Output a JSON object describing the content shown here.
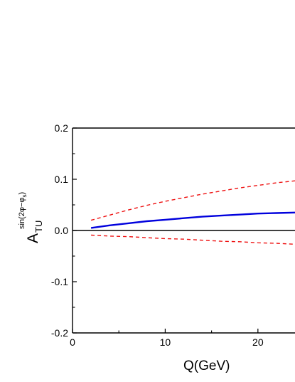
{
  "chart_data": {
    "type": "line",
    "xlabel": "Q(GeV)",
    "ylabel": {
      "main": "A",
      "subscript": "TU",
      "superscript": "sin(2φ−φ",
      "superscript_sub": "s",
      "superscript_close": ")"
    },
    "xlim": [
      0,
      24
    ],
    "ylim": [
      -0.2,
      0.2
    ],
    "x_ticks": [
      {
        "value": 0,
        "label": "0"
      },
      {
        "value": 10,
        "label": "10"
      },
      {
        "value": 20,
        "label": "20"
      }
    ],
    "y_ticks": [
      {
        "value": 0.2,
        "label": "0.2"
      },
      {
        "value": 0.1,
        "label": "0.1"
      },
      {
        "value": 0.0,
        "label": "0.0"
      },
      {
        "value": -0.1,
        "label": "-0.1"
      },
      {
        "value": -0.2,
        "label": "-0.2"
      }
    ],
    "zero_line": true,
    "grid": false,
    "series": [
      {
        "style": "solid",
        "color": "#0000dd",
        "x": [
          2,
          4,
          6,
          8,
          10,
          12,
          14,
          16,
          18,
          20,
          22,
          24
        ],
        "y": [
          0.005,
          0.01,
          0.014,
          0.018,
          0.021,
          0.024,
          0.027,
          0.029,
          0.031,
          0.033,
          0.034,
          0.035
        ]
      },
      {
        "style": "dashed",
        "color": "#ee1111",
        "x": [
          2,
          4,
          6,
          8,
          10,
          12,
          14,
          16,
          18,
          20,
          22,
          24
        ],
        "y": [
          0.02,
          0.03,
          0.04,
          0.049,
          0.057,
          0.064,
          0.071,
          0.077,
          0.083,
          0.088,
          0.093,
          0.097
        ]
      },
      {
        "style": "dashed",
        "color": "#ee1111",
        "x": [
          2,
          4,
          6,
          8,
          10,
          12,
          14,
          16,
          18,
          20,
          22,
          24
        ],
        "y": [
          -0.009,
          -0.011,
          -0.012,
          -0.014,
          -0.016,
          -0.017,
          -0.019,
          -0.021,
          -0.022,
          -0.024,
          -0.025,
          -0.027
        ]
      }
    ]
  }
}
